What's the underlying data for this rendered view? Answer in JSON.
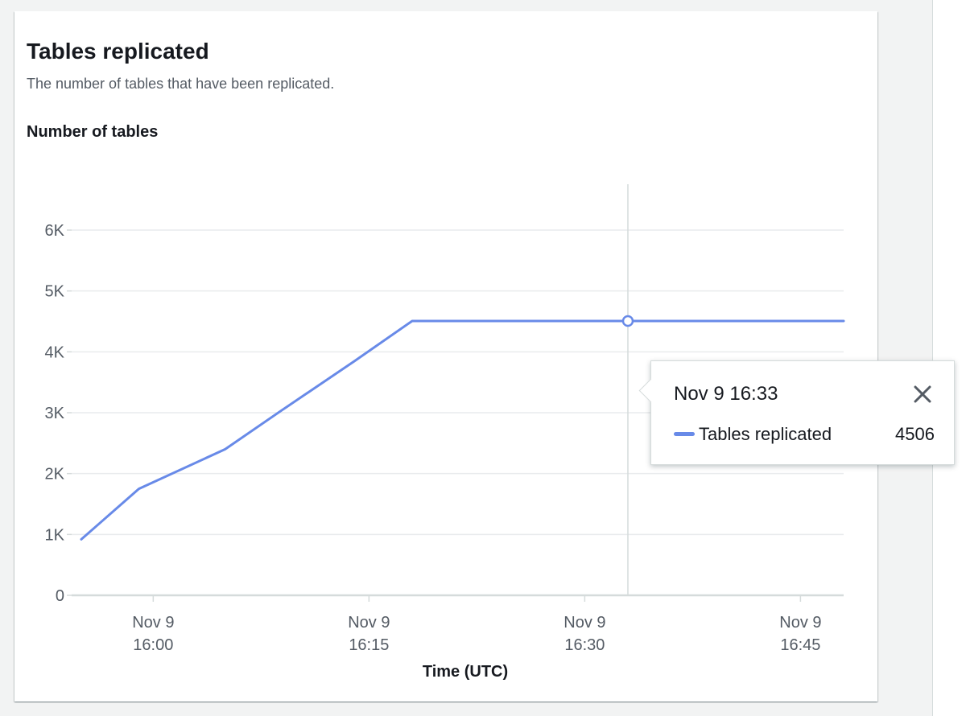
{
  "card": {
    "title": "Tables replicated",
    "description": "The number of tables that have been replicated."
  },
  "colors": {
    "series": "#688ae8",
    "grid": "#e9ebed",
    "axis": "#d5dbdb",
    "text": "#16191f",
    "muted": "#545b64"
  },
  "chart_data": {
    "type": "line",
    "ylabel": "Number of tables",
    "xlabel": "Time (UTC)",
    "ylim": [
      0,
      6000
    ],
    "y_ticks": [
      {
        "value": 0,
        "label": "0"
      },
      {
        "value": 1000,
        "label": "1K"
      },
      {
        "value": 2000,
        "label": "2K"
      },
      {
        "value": 3000,
        "label": "3K"
      },
      {
        "value": 4000,
        "label": "4K"
      },
      {
        "value": 5000,
        "label": "5K"
      },
      {
        "value": 6000,
        "label": "6K"
      }
    ],
    "x_range": [
      "Nov 9 15:55",
      "Nov 9 16:48"
    ],
    "x_ticks": [
      {
        "x": "Nov 9 16:00",
        "label_line1": "Nov 9",
        "label_line2": "16:00"
      },
      {
        "x": "Nov 9 16:15",
        "label_line1": "Nov 9",
        "label_line2": "16:15"
      },
      {
        "x": "Nov 9 16:30",
        "label_line1": "Nov 9",
        "label_line2": "16:30"
      },
      {
        "x": "Nov 9 16:45",
        "label_line1": "Nov 9",
        "label_line2": "16:45"
      }
    ],
    "grid": true,
    "series": [
      {
        "name": "Tables replicated",
        "points": [
          {
            "x": "Nov 9 15:55",
            "y": 920
          },
          {
            "x": "Nov 9 15:59",
            "y": 1750
          },
          {
            "x": "Nov 9 16:05",
            "y": 2400
          },
          {
            "x": "Nov 9 16:09",
            "y": 3050
          },
          {
            "x": "Nov 9 16:14",
            "y": 3850
          },
          {
            "x": "Nov 9 16:18",
            "y": 4506
          },
          {
            "x": "Nov 9 16:33",
            "y": 4506
          },
          {
            "x": "Nov 9 16:48",
            "y": 4506
          }
        ]
      }
    ],
    "highlight": {
      "x": "Nov 9 16:33",
      "y": 4506
    }
  },
  "tooltip": {
    "title": "Nov 9 16:33",
    "series_name": "Tables replicated",
    "value": "4506",
    "close_icon": "close-icon"
  }
}
